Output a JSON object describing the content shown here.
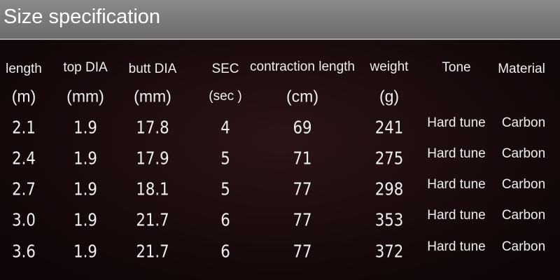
{
  "header": {
    "title": "Size specification"
  },
  "table": {
    "headers": [
      "length",
      "top DIA",
      "butt DIA",
      "SEC",
      "contraction length",
      "weight",
      "Tone",
      "Material"
    ],
    "units": [
      "(m)",
      "(mm)",
      "(mm)",
      "(sec )",
      "(cm)",
      "(g)"
    ],
    "rows": [
      [
        "2.1",
        "1.9",
        "17.8",
        "4",
        "69",
        "241",
        "Hard tune",
        "Carbon"
      ],
      [
        "2.4",
        "1.9",
        "17.9",
        "5",
        "71",
        "275",
        "Hard tune",
        "Carbon"
      ],
      [
        "2.7",
        "1.9",
        "18.1",
        "5",
        "77",
        "298",
        "Hard tune",
        "Carbon"
      ],
      [
        "3.0",
        "1.9",
        "21.7",
        "6",
        "77",
        "353",
        "Hard tune",
        "Carbon"
      ],
      [
        "3.6",
        "1.9",
        "21.7",
        "6",
        "77",
        "372",
        "Hard tune",
        "Carbon"
      ]
    ]
  }
}
